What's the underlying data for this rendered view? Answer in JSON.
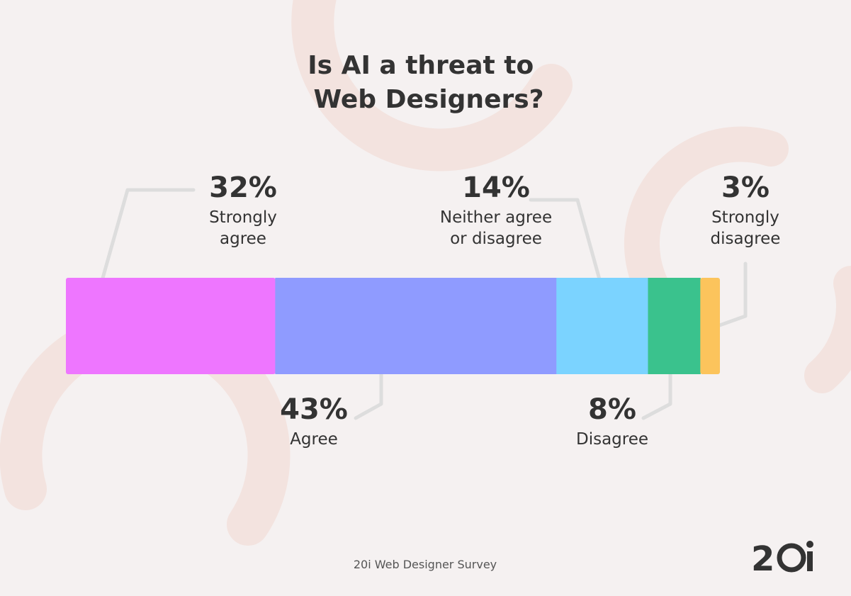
{
  "chart_data": {
    "type": "bar",
    "orientation": "horizontal-stacked",
    "title": "Is AI a threat to Web Designers?",
    "title_lines": [
      "Is AI a threat to",
      "Web Designers?"
    ],
    "categories": [
      "Strongly agree",
      "Agree",
      "Neither agree or disagree",
      "Disagree",
      "Strongly disagree"
    ],
    "values": [
      32,
      43,
      14,
      8,
      3
    ],
    "value_labels": [
      "32%",
      "43%",
      "14%",
      "8%",
      "3%"
    ],
    "label_lines": [
      [
        "Strongly",
        "agree"
      ],
      [
        "Agree"
      ],
      [
        "Neither agree",
        "or disagree"
      ],
      [
        "Disagree"
      ],
      [
        "Strongly",
        "disagree"
      ]
    ],
    "colors": [
      "#ee76ff",
      "#8f9bff",
      "#7bd3ff",
      "#3ac28d",
      "#fcc45c"
    ],
    "unit": "%",
    "xlim": [
      0,
      100
    ],
    "grid": false,
    "legend": "none"
  },
  "footer": {
    "source": "20i Web Designer Survey",
    "logo": "20i"
  }
}
